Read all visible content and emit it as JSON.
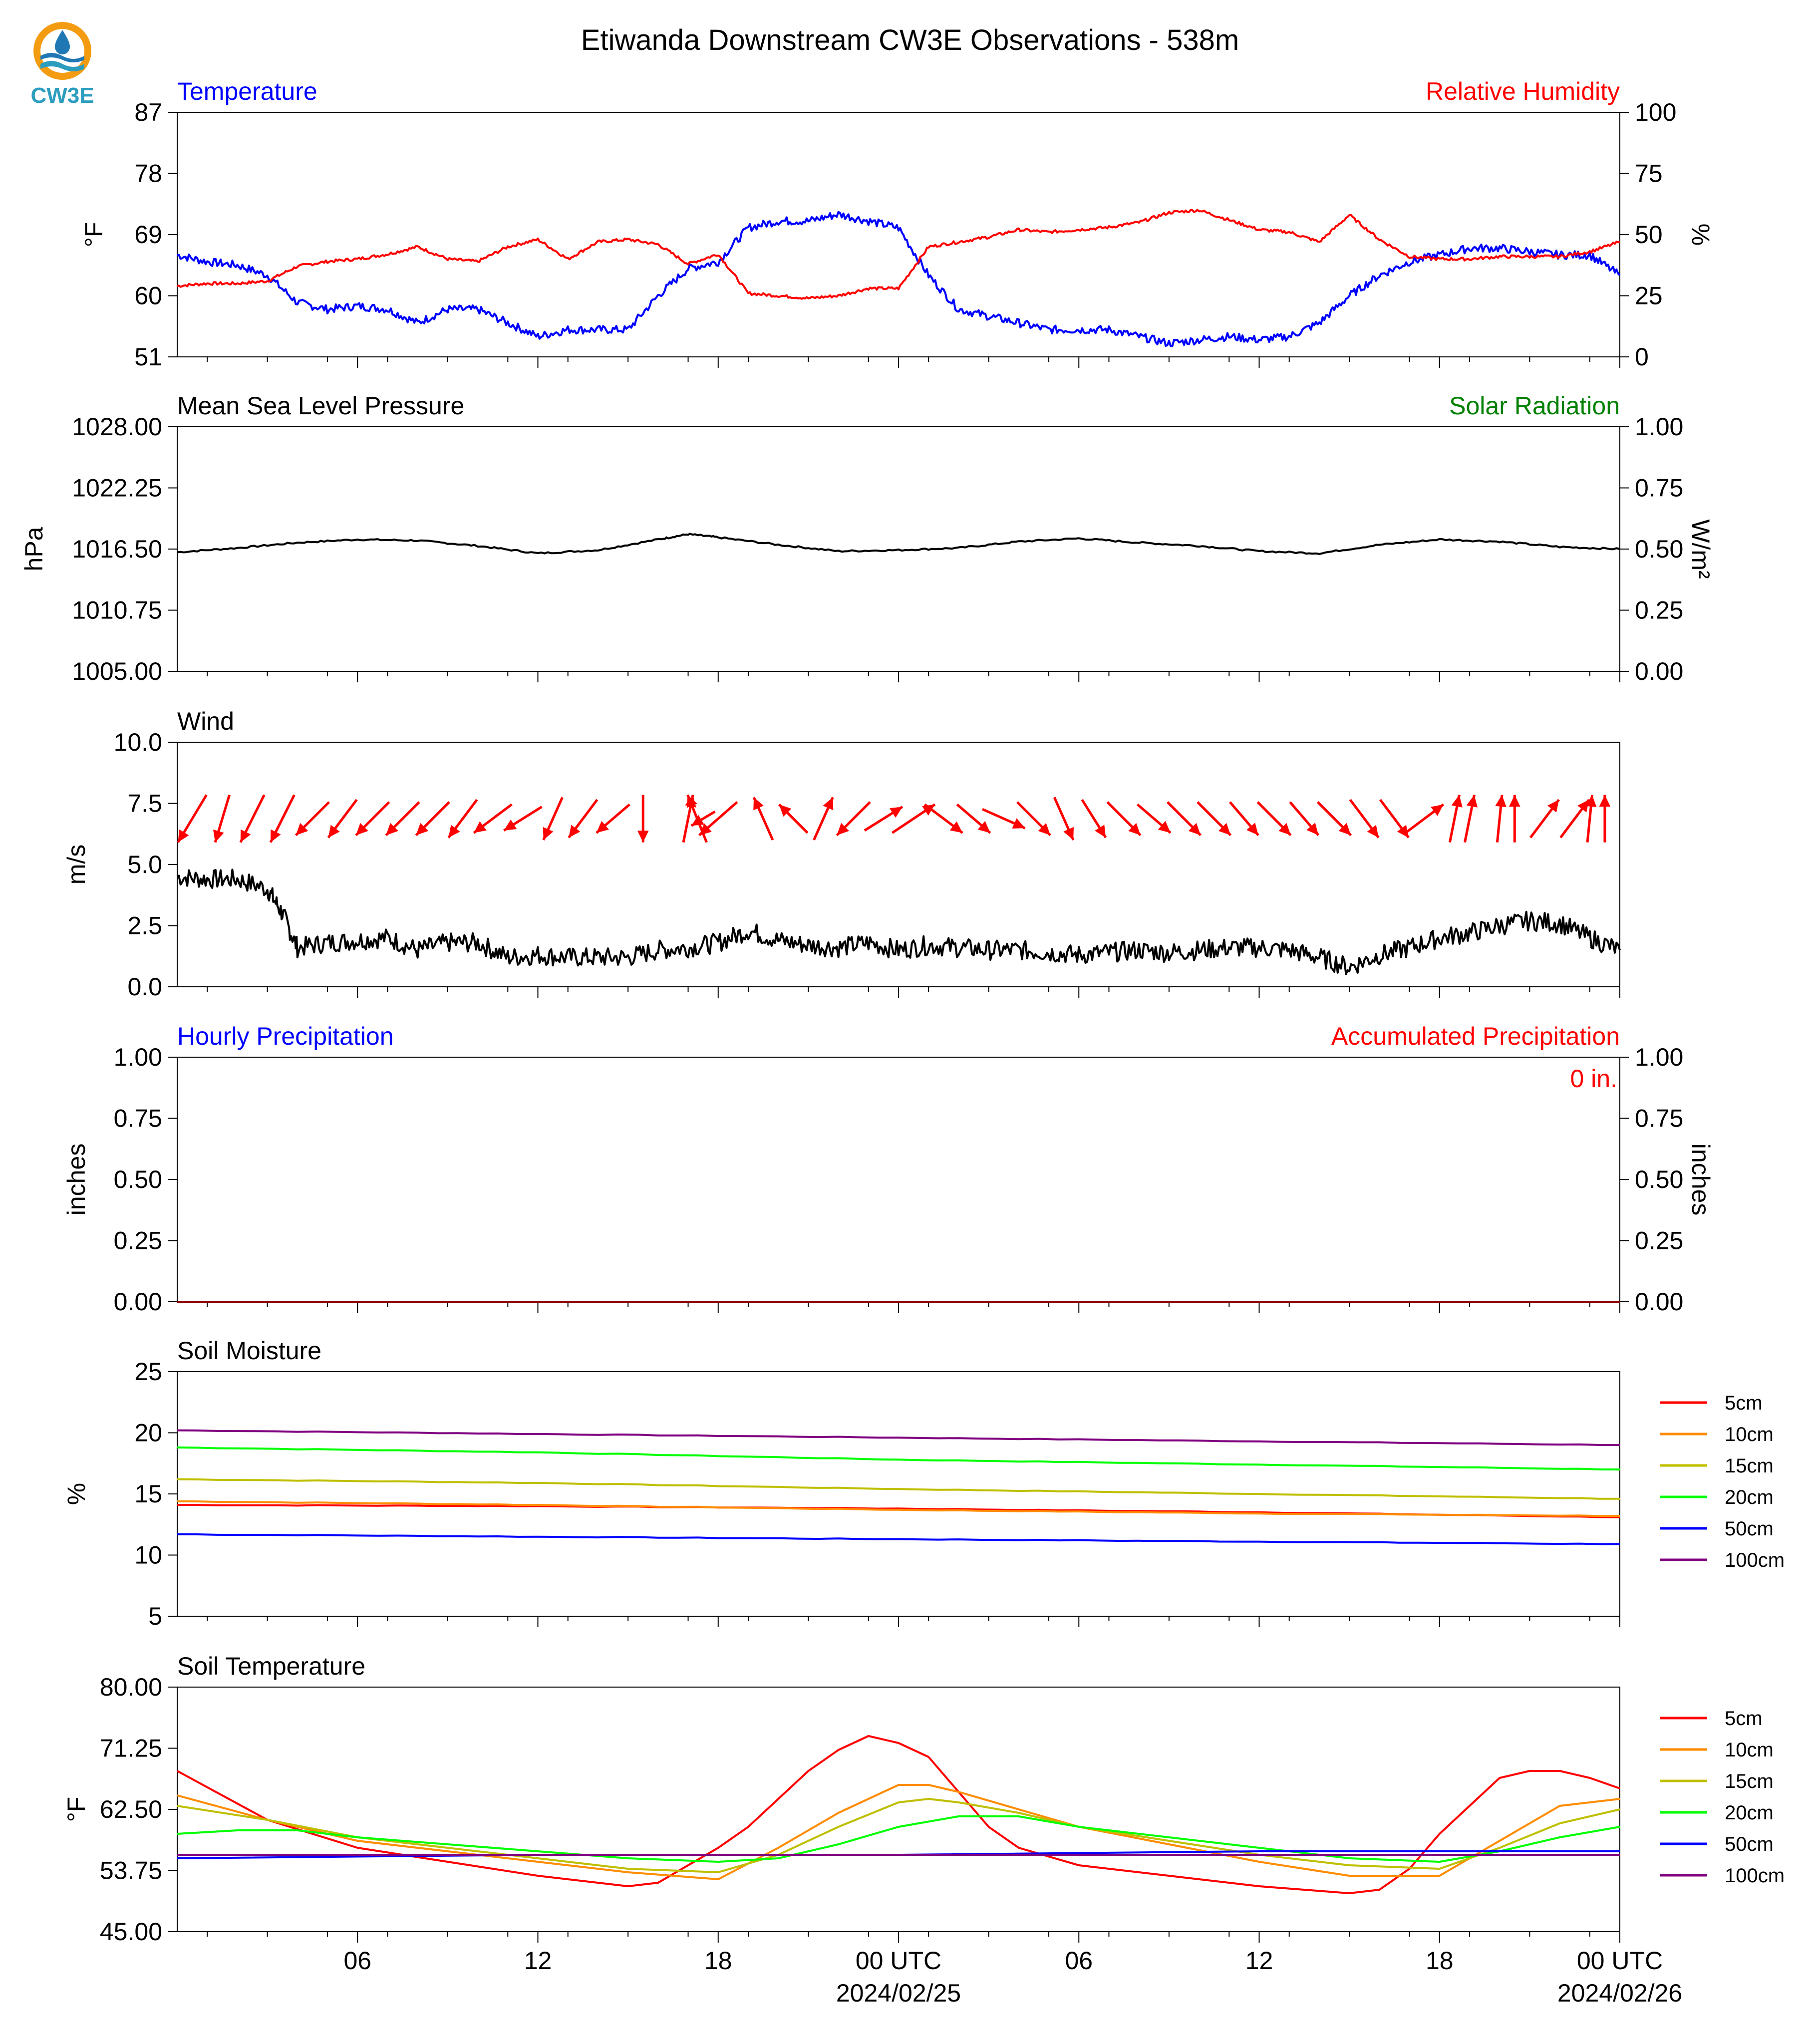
{
  "title": "Etiwanda Downstream CW3E Observations - 538m",
  "logo": {
    "text": "CW3E",
    "icon": "cw3e-logo-icon",
    "colors": {
      "orange": "#F39C12",
      "blue": "#1F77B4",
      "teal": "#2C9DBE"
    }
  },
  "colors": {
    "temperature": "#0000FF",
    "humidity": "#FF0000",
    "pressure": "#000000",
    "solar": "#008000",
    "wind": "#000000",
    "arrows": "#FF0000"
  },
  "x_axis": {
    "hours_start_offset": 0,
    "tick_labels": [
      "06",
      "12",
      "18",
      "00 UTC",
      "06",
      "12",
      "18",
      "00 UTC"
    ],
    "date_labels": [
      "2024/02/25",
      "2024/02/26"
    ]
  },
  "chart_data": [
    {
      "id": "temp-rh",
      "type": "line",
      "left_title": "Temperature",
      "right_title": "Relative Humidity",
      "ylabel_left": "°F",
      "ylabel_right": "%",
      "ylim_left": [
        51,
        87
      ],
      "ylim_right": [
        0,
        100
      ],
      "yticks_left": [
        "87",
        "78",
        "69",
        "60",
        "51"
      ],
      "yticks_right": [
        "100",
        "75",
        "50",
        "25",
        "0"
      ],
      "series": [
        {
          "name": "Temperature",
          "axis": "left",
          "x_hours": [
            0,
            1,
            2,
            3,
            4,
            5,
            6,
            7,
            8,
            9,
            10,
            11,
            12,
            13,
            14,
            15,
            16,
            17,
            18,
            19,
            20,
            21,
            22,
            23,
            24,
            25,
            26,
            27,
            28,
            29,
            30,
            31,
            32,
            33,
            34,
            35,
            36,
            37,
            38,
            39,
            40,
            41,
            42,
            43,
            44,
            45,
            46,
            47,
            48
          ],
          "values": [
            66,
            65,
            64.5,
            63,
            59,
            58,
            58.5,
            58,
            56,
            58,
            58,
            56,
            54,
            55,
            55,
            55,
            60,
            64,
            65,
            70,
            71,
            71,
            72,
            71,
            70,
            63,
            58,
            57,
            56,
            55,
            55,
            55,
            54,
            53,
            53.5,
            54,
            53.5,
            54,
            56,
            60,
            63,
            65,
            66,
            67,
            67,
            66.5,
            66,
            66,
            63
          ]
        },
        {
          "name": "Relative Humidity",
          "axis": "right",
          "x_hours": [
            0,
            1,
            2,
            3,
            4,
            5,
            6,
            7,
            8,
            9,
            10,
            11,
            12,
            13,
            14,
            15,
            16,
            17,
            18,
            19,
            20,
            21,
            22,
            23,
            24,
            25,
            26,
            27,
            28,
            29,
            30,
            31,
            32,
            33,
            34,
            35,
            36,
            37,
            38,
            39,
            40,
            41,
            42,
            43,
            44,
            45,
            46,
            47,
            48
          ],
          "values": [
            29,
            30,
            30,
            31,
            37,
            39,
            40,
            42,
            45,
            40,
            39,
            45,
            48,
            40,
            47,
            48,
            46,
            38,
            42,
            26,
            25,
            24,
            25,
            28,
            28,
            45,
            47,
            49,
            52,
            51,
            52,
            53,
            55,
            59,
            60,
            56,
            52,
            51,
            47,
            58,
            48,
            41,
            40,
            40,
            41,
            41,
            41,
            43,
            47
          ]
        }
      ]
    },
    {
      "id": "pressure-solar",
      "type": "line",
      "left_title": "Mean Sea Level Pressure",
      "right_title": "Solar Radiation",
      "ylabel_left": "hPa",
      "ylabel_right": "W/m²",
      "ylim_left": [
        1005,
        1028
      ],
      "ylim_right": [
        0,
        1
      ],
      "yticks_left": [
        "1028.00",
        "1022.25",
        "1016.50",
        "1010.75",
        "1005.00"
      ],
      "yticks_right": [
        "1.00",
        "0.75",
        "0.50",
        "0.25",
        "0.00"
      ],
      "series": [
        {
          "name": "Mean Sea Level Pressure",
          "axis": "left",
          "x_hours": [
            0,
            2,
            4,
            6,
            8,
            10,
            12,
            14,
            16,
            17,
            18,
            20,
            22,
            24,
            26,
            28,
            30,
            32,
            34,
            36,
            38,
            40,
            42,
            44,
            46,
            48
          ],
          "values": [
            1016.2,
            1016.6,
            1017.1,
            1017.4,
            1017.3,
            1016.8,
            1016.1,
            1016.4,
            1017.4,
            1017.9,
            1017.6,
            1016.9,
            1016.3,
            1016.4,
            1016.6,
            1017.2,
            1017.5,
            1017.1,
            1016.8,
            1016.3,
            1016.1,
            1016.9,
            1017.4,
            1017.2,
            1016.7,
            1016.5
          ]
        }
      ]
    },
    {
      "id": "wind",
      "type": "line",
      "left_title": "Wind",
      "ylabel_left": "m/s",
      "ylim_left": [
        0,
        10
      ],
      "yticks_left": [
        "10.0",
        "7.5",
        "5.0",
        "2.5",
        "0.0"
      ],
      "series": [
        {
          "name": "Wind",
          "axis": "left",
          "x_hours": [
            0,
            1,
            2,
            3,
            3.5,
            4,
            5,
            6,
            7,
            8,
            9,
            10,
            11,
            12,
            13,
            14,
            15,
            16,
            17,
            18,
            19,
            20,
            21,
            22,
            23,
            24,
            25,
            26,
            27,
            28,
            29,
            30,
            31,
            32,
            33,
            34,
            35,
            36,
            37,
            38,
            39,
            40,
            41,
            42,
            43,
            44,
            45,
            46,
            47,
            48
          ],
          "values": [
            4.5,
            4.4,
            4.4,
            4.0,
            3.0,
            1.6,
            1.8,
            1.9,
            2.0,
            1.5,
            1.8,
            1.8,
            1.2,
            1.3,
            1.2,
            1.2,
            1.2,
            1.5,
            1.6,
            1.8,
            2.3,
            1.9,
            1.7,
            1.6,
            1.8,
            1.5,
            1.7,
            1.6,
            1.5,
            1.5,
            1.4,
            1.3,
            1.4,
            1.5,
            1.4,
            1.5,
            1.6,
            1.6,
            1.5,
            1.2,
            0.8,
            1.3,
            1.6,
            2.0,
            2.2,
            2.5,
            2.7,
            2.6,
            2.0,
            1.5
          ]
        }
      ],
      "arrows": [
        [
          0.5,
          -0.6,
          -1
        ],
        [
          1.5,
          -0.3,
          -1
        ],
        [
          2.5,
          -0.5,
          -1
        ],
        [
          3.5,
          -0.5,
          -1
        ],
        [
          4.5,
          -0.7,
          -0.7
        ],
        [
          5.5,
          -0.6,
          -0.8
        ],
        [
          6.5,
          -0.7,
          -0.7
        ],
        [
          7.5,
          -0.7,
          -0.7
        ],
        [
          8.5,
          -0.7,
          -0.7
        ],
        [
          9.5,
          -0.6,
          -0.8
        ],
        [
          10.5,
          -0.8,
          -0.6
        ],
        [
          11.5,
          -0.8,
          -0.5
        ],
        [
          12.5,
          -0.4,
          -0.9
        ],
        [
          13.5,
          -0.6,
          -0.8
        ],
        [
          14.5,
          -0.7,
          -0.6
        ],
        [
          15.5,
          0,
          -1
        ],
        [
          17.0,
          0.2,
          1
        ],
        [
          17.3,
          -0.4,
          1
        ],
        [
          17.5,
          -0.5,
          -0.3
        ],
        [
          18.0,
          -0.8,
          -0.7
        ],
        [
          19.5,
          -0.4,
          0.9
        ],
        [
          20.5,
          -0.6,
          0.6
        ],
        [
          21.5,
          0.4,
          0.9
        ],
        [
          22.5,
          -0.7,
          -0.7
        ],
        [
          23.5,
          0.8,
          0.5
        ],
        [
          24.5,
          0.9,
          0.6
        ],
        [
          25.5,
          0.8,
          -0.6
        ],
        [
          26.5,
          0.7,
          -0.6
        ],
        [
          27.5,
          0.9,
          -0.4
        ],
        [
          28.5,
          0.7,
          -0.7
        ],
        [
          29.5,
          0.4,
          -0.9
        ],
        [
          30.5,
          0.5,
          -0.8
        ],
        [
          31.5,
          0.7,
          -0.7
        ],
        [
          32.5,
          0.7,
          -0.6
        ],
        [
          33.5,
          0.7,
          -0.7
        ],
        [
          34.5,
          0.7,
          -0.7
        ],
        [
          35.5,
          0.6,
          -0.7
        ],
        [
          36.5,
          0.7,
          -0.7
        ],
        [
          37.5,
          0.6,
          -0.7
        ],
        [
          38.5,
          0.7,
          -0.7
        ],
        [
          39.5,
          0.6,
          -0.8
        ],
        [
          40.5,
          0.6,
          -0.8
        ],
        [
          41.5,
          0.8,
          0.6
        ],
        [
          42.5,
          0.2,
          1
        ],
        [
          43.0,
          0.2,
          1
        ],
        [
          44.0,
          0.1,
          1
        ],
        [
          44.5,
          0,
          1
        ],
        [
          45.5,
          0.6,
          0.8
        ],
        [
          46.5,
          0.6,
          0.8
        ],
        [
          47.0,
          0.1,
          1
        ],
        [
          47.5,
          0,
          1
        ]
      ]
    },
    {
      "id": "precip",
      "type": "line",
      "left_title": "Hourly Precipitation",
      "right_title": "Accumulated Precipitation",
      "ylabel_left": "inches",
      "ylabel_right": "inches",
      "ylim_left": [
        0,
        1
      ],
      "ylim_right": [
        0,
        1
      ],
      "yticks_left": [
        "1.00",
        "0.75",
        "0.50",
        "0.25",
        "0.00"
      ],
      "yticks_right": [
        "1.00",
        "0.75",
        "0.50",
        "0.25",
        "0.00"
      ],
      "annotation": "0 in.",
      "series": [
        {
          "name": "Hourly Precipitation",
          "axis": "left",
          "x_hours": [
            0,
            48
          ],
          "values": [
            0,
            0
          ]
        }
      ]
    },
    {
      "id": "soil-moisture",
      "type": "line",
      "left_title": "Soil Moisture",
      "ylabel_left": "%",
      "ylim_left": [
        5,
        25
      ],
      "yticks_left": [
        "25",
        "20",
        "15",
        "10",
        "5"
      ],
      "legend": "right",
      "series": [
        {
          "name": "5cm",
          "color": "#FF0000",
          "x_hours": [
            0,
            12,
            24,
            36,
            48
          ],
          "values": [
            14.1,
            14.0,
            13.8,
            13.5,
            13.1
          ]
        },
        {
          "name": "10cm",
          "color": "#FF8C00",
          "x_hours": [
            0,
            12,
            24,
            36,
            48
          ],
          "values": [
            14.4,
            14.1,
            13.7,
            13.4,
            13.2
          ]
        },
        {
          "name": "15cm",
          "color": "#BFBF00",
          "x_hours": [
            0,
            12,
            24,
            36,
            48
          ],
          "values": [
            16.2,
            15.9,
            15.4,
            15.0,
            14.6
          ]
        },
        {
          "name": "20cm",
          "color": "#00FF00",
          "x_hours": [
            0,
            12,
            24,
            36,
            48
          ],
          "values": [
            18.8,
            18.4,
            17.8,
            17.4,
            17.0
          ]
        },
        {
          "name": "50cm",
          "color": "#0000FF",
          "x_hours": [
            0,
            12,
            24,
            36,
            48
          ],
          "values": [
            11.7,
            11.5,
            11.3,
            11.1,
            10.9
          ]
        },
        {
          "name": "100cm",
          "color": "#800080",
          "x_hours": [
            0,
            12,
            24,
            36,
            48
          ],
          "values": [
            20.2,
            19.9,
            19.6,
            19.3,
            19.0
          ]
        }
      ]
    },
    {
      "id": "soil-temp",
      "type": "line",
      "left_title": "Soil Temperature",
      "ylabel_left": "°F",
      "ylim_left": [
        45,
        80
      ],
      "yticks_left": [
        "80.00",
        "71.25",
        "62.50",
        "53.75",
        "45.00"
      ],
      "legend": "right",
      "series": [
        {
          "name": "5cm",
          "color": "#FF0000",
          "x_hours": [
            0,
            3,
            6,
            9,
            12,
            15,
            16,
            18,
            19,
            20,
            21,
            22,
            23,
            24,
            25,
            26,
            27,
            28,
            30,
            33,
            36,
            39,
            40,
            41,
            42,
            43,
            44,
            45,
            46,
            47,
            48
          ],
          "values": [
            68,
            61,
            57,
            55,
            53,
            51.5,
            52,
            57,
            60,
            64,
            68,
            71,
            73,
            72,
            70,
            65,
            60,
            57,
            54.5,
            53,
            51.5,
            50.5,
            51,
            54,
            59,
            63,
            67,
            68,
            68,
            67,
            65.5
          ]
        },
        {
          "name": "10cm",
          "color": "#FF8C00",
          "x_hours": [
            0,
            3,
            6,
            9,
            12,
            15,
            18,
            20,
            22,
            24,
            25,
            26,
            28,
            30,
            33,
            36,
            39,
            42,
            44,
            46,
            48
          ],
          "values": [
            64.5,
            61,
            58,
            56.5,
            55,
            53.5,
            52.5,
            57,
            62,
            66,
            66,
            65,
            62.5,
            60,
            57.5,
            55,
            53,
            53,
            58,
            63,
            64
          ]
        },
        {
          "name": "15cm",
          "color": "#BFBF00",
          "x_hours": [
            0,
            3,
            6,
            9,
            12,
            15,
            18,
            20,
            22,
            24,
            25,
            26,
            28,
            30,
            33,
            36,
            39,
            42,
            44,
            46,
            48
          ],
          "values": [
            63,
            61,
            58.5,
            57,
            55.5,
            54,
            53.5,
            56,
            60,
            63.5,
            64,
            63.5,
            62,
            60,
            58,
            56,
            54.5,
            54,
            57,
            60.5,
            62.5
          ]
        },
        {
          "name": "20cm",
          "color": "#00FF00",
          "x_hours": [
            0,
            2,
            4,
            6,
            9,
            12,
            15,
            18,
            20,
            22,
            24,
            26,
            28,
            30,
            33,
            36,
            39,
            42,
            44,
            46,
            48
          ],
          "values": [
            59,
            59.5,
            59.5,
            58.5,
            57.5,
            56.5,
            55.5,
            55,
            55.5,
            57.5,
            60,
            61.5,
            61.5,
            60,
            58.5,
            57,
            55.5,
            55,
            56.5,
            58.5,
            60
          ]
        },
        {
          "name": "50cm",
          "color": "#0000FF",
          "x_hours": [
            0,
            12,
            24,
            36,
            48
          ],
          "values": [
            55.5,
            56,
            56,
            56.5,
            56.5
          ]
        },
        {
          "name": "100cm",
          "color": "#800080",
          "x_hours": [
            0,
            12,
            24,
            36,
            48
          ],
          "values": [
            56,
            56,
            56,
            56,
            56
          ]
        }
      ]
    }
  ]
}
